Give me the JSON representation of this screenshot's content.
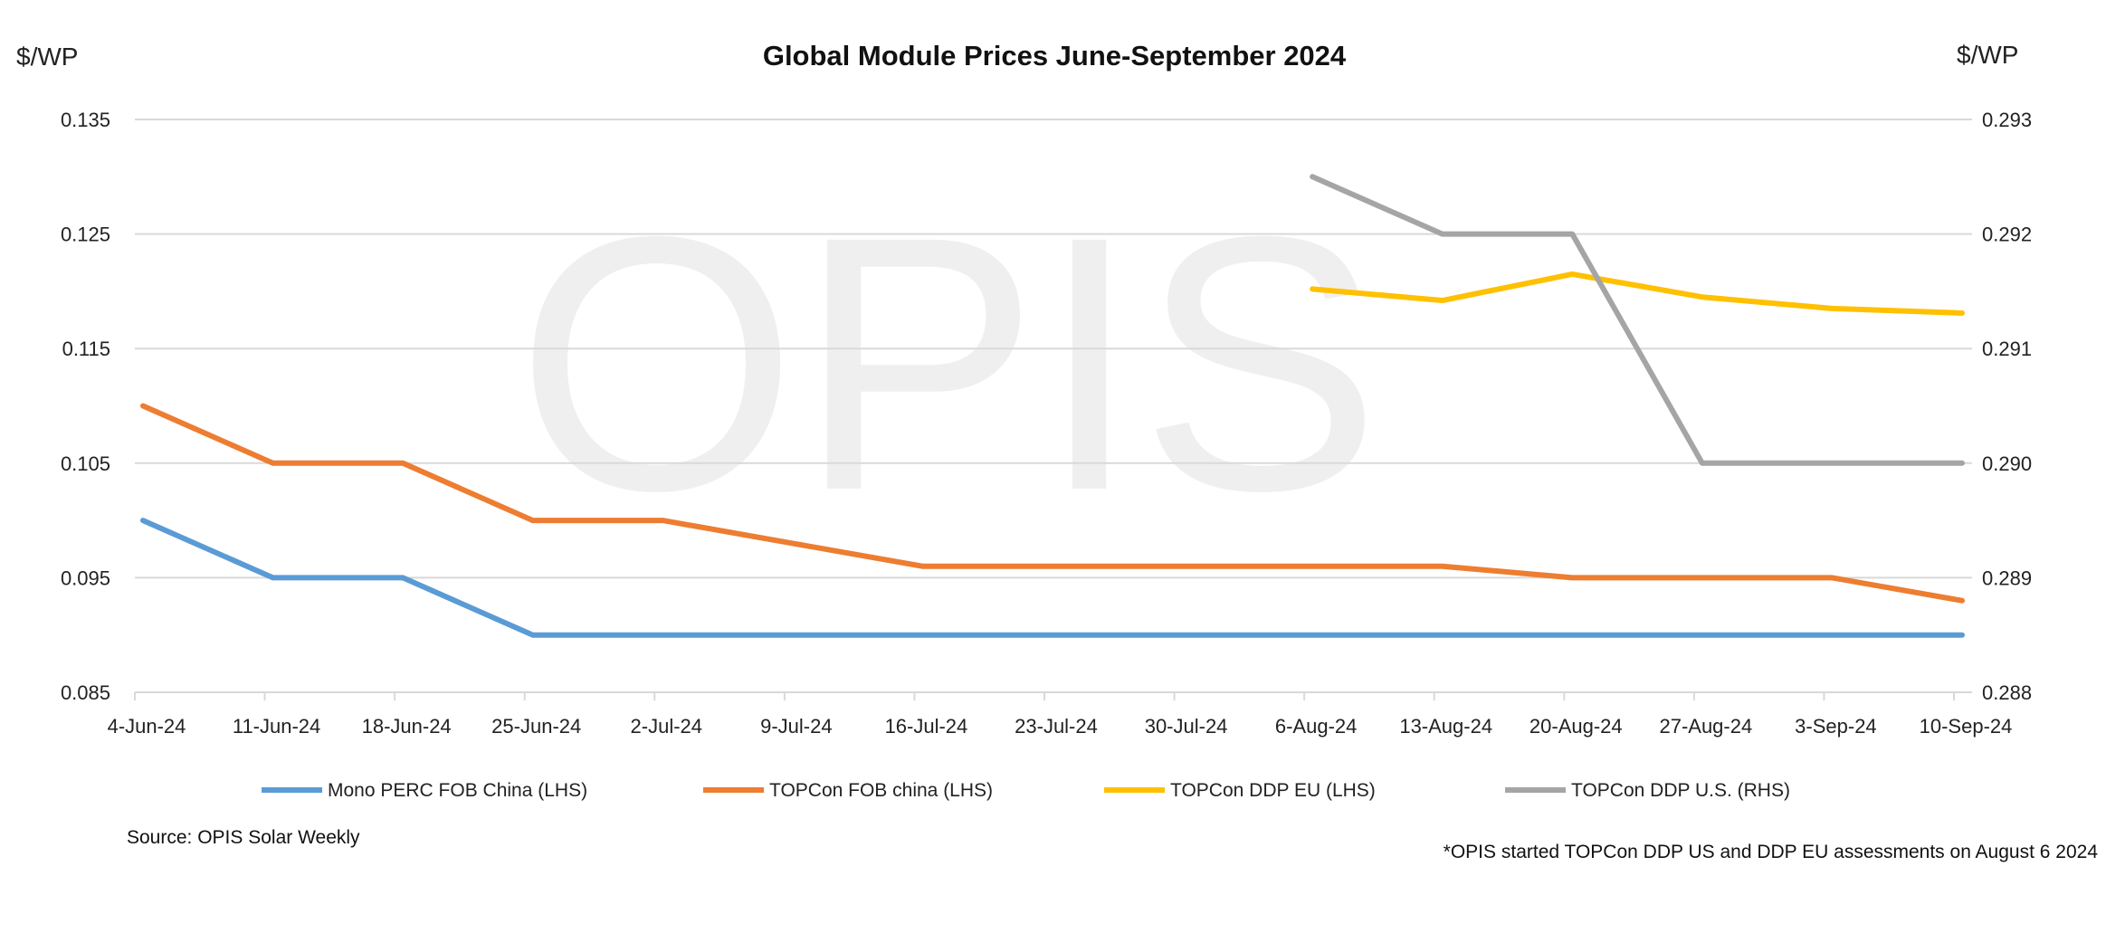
{
  "chart_data": {
    "type": "line",
    "title": "Global Module Prices  June-September 2024",
    "ylabel_left": "$/WP",
    "ylabel_right": "$/WP",
    "watermark": "OPIS",
    "categories": [
      "4-Jun-24",
      "11-Jun-24",
      "18-Jun-24",
      "25-Jun-24",
      "2-Jul-24",
      "9-Jul-24",
      "16-Jul-24",
      "23-Jul-24",
      "30-Jul-24",
      "6-Aug-24",
      "13-Aug-24",
      "20-Aug-24",
      "27-Aug-24",
      "3-Sep-24",
      "10-Sep-24"
    ],
    "ylim_left": [
      0.085,
      0.135
    ],
    "yticks_left": [
      "0.085",
      "0.095",
      "0.105",
      "0.115",
      "0.125",
      "0.135"
    ],
    "ylim_right": [
      0.288,
      0.293
    ],
    "yticks_right": [
      "0.288",
      "0.289",
      "0.290",
      "0.291",
      "0.292",
      "0.293"
    ],
    "grid": true,
    "legend_position": "bottom",
    "series": [
      {
        "name": "Mono PERC FOB China (LHS)",
        "axis": "left",
        "color": "#5b9bd5",
        "values": [
          0.1,
          0.095,
          0.095,
          0.09,
          0.09,
          0.09,
          0.09,
          0.09,
          0.09,
          0.09,
          0.09,
          0.09,
          0.09,
          0.09,
          0.09
        ]
      },
      {
        "name": "TOPCon FOB china (LHS)",
        "axis": "left",
        "color": "#ed7d31",
        "values": [
          0.11,
          0.105,
          0.105,
          0.1,
          0.1,
          0.098,
          0.096,
          0.096,
          0.096,
          0.096,
          0.096,
          0.095,
          0.095,
          0.095,
          0.093
        ]
      },
      {
        "name": "TOPCon DDP EU (LHS)",
        "axis": "left",
        "color": "#ffc000",
        "values": [
          null,
          null,
          null,
          null,
          null,
          null,
          null,
          null,
          null,
          0.1202,
          0.1192,
          0.1215,
          0.1195,
          0.1185,
          0.1181
        ]
      },
      {
        "name": "TOPCon DDP U.S. (RHS)",
        "axis": "right",
        "color": "#a5a5a5",
        "values": [
          null,
          null,
          null,
          null,
          null,
          null,
          null,
          null,
          null,
          0.2925,
          0.292,
          0.292,
          0.29,
          0.29,
          0.29
        ]
      }
    ],
    "source": "Source: OPIS Solar Weekly",
    "footnote": "*OPIS started TOPCon DDP US and DDP EU assessments on August 6 2024"
  }
}
